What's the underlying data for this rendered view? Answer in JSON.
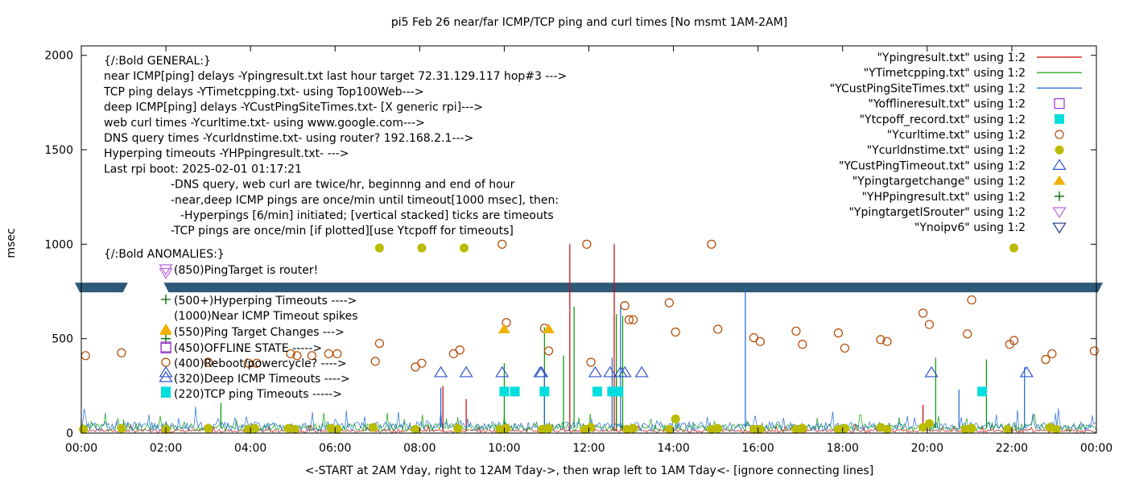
{
  "chart_data": {
    "type": "line",
    "title": "pi5 Feb 26  near/far ICMP/TCP ping and curl times [No msmt 1AM-2AM]",
    "xlabel": "<-START at 2AM Yday, right to 12AM Tday->, then wrap left to 1AM Tday<- [ignore connecting lines]",
    "ylabel": "msec",
    "ylim": [
      0,
      2050
    ],
    "xlim": [
      0,
      24
    ],
    "x_ticks": [
      "00:00",
      "02:00",
      "04:00",
      "06:00",
      "08:00",
      "10:00",
      "12:00",
      "14:00",
      "16:00",
      "18:00",
      "20:00",
      "22:00",
      "00:00"
    ],
    "y_ticks": [
      "0",
      "500",
      "1000",
      "1500",
      "2000"
    ],
    "legend_position": "top-right",
    "legend": [
      {
        "label": "\"Ypingresult.txt\" using 1:2",
        "marker": "line",
        "color": "#cc0000"
      },
      {
        "label": "\"YTimetcpping.txt\" using 1:2",
        "marker": "line",
        "color": "#009900"
      },
      {
        "label": "\"YCustPingSiteTimes.txt\" using 1:2",
        "marker": "line",
        "color": "#1a66cc"
      },
      {
        "label": "\"Yofflineresult.txt\" using 1:2",
        "marker": "open-square",
        "color": "#9933cc"
      },
      {
        "label": "\"Ytcpoff_record.txt\" using 1:2",
        "marker": "filled-square",
        "color": "#00dddd"
      },
      {
        "label": "\"Ycurltime.txt\" using 1:2",
        "marker": "open-circle",
        "color": "#b34700"
      },
      {
        "label": "\"Ycurldnstime.txt\" using 1:2",
        "marker": "filled-circle",
        "color": "#bbbb00"
      },
      {
        "label": "\"YCustPingTimeout.txt\" using 1:2",
        "marker": "open-triangle",
        "color": "#3355cc"
      },
      {
        "label": "\"Ypingtargetchange\" using 1:2",
        "marker": "filled-triangle",
        "color": "#f0b000"
      },
      {
        "label": "\"YHPpingresult.txt\" using 1:2",
        "marker": "plus",
        "color": "#006600"
      },
      {
        "label": "\"YpingtargetISrouter\" using 1:2",
        "marker": "open-down-triangle",
        "color": "#bb66dd"
      },
      {
        "label": "\"Ynoipv6\" using 1:2",
        "marker": "open-down-triangle",
        "color": "#1a3a88"
      }
    ],
    "annotations_general": [
      "{/:Bold GENERAL:}",
      "near ICMP[ping] delays -Ypingresult.txt last hour target 72.31.129.117 hop#3 --->",
      "TCP ping delays -YTimetcpping.txt- using Top100Web--->",
      "deep ICMP[ping] delays -YCustPingSiteTimes.txt- [X generic rpi]--->",
      "web curl times -Ycurltime.txt- using www.google.com--->",
      "DNS query times -Ycurldnstime.txt- using router? 192.168.2.1--->",
      "Hyperping timeouts -YHPpingresult.txt- --->",
      "Last rpi boot: 2025-02-01 01:17:21",
      "-DNS query, web curl are twice/hr, beginnng and end of hour",
      "-near,deep ICMP pings are once/min until timeout[1000 msec], then:",
      "-Hyperpings [6/min] initiated; [vertical stacked] ticks are timeouts",
      "-TCP pings are once/min [if plotted][use Ytcpoff for timeouts]"
    ],
    "annotations_anomalies": [
      "{/:Bold ANOMALIES:}",
      "(850)PingTarget is router!",
      "(500+)Hyperping Timeouts ---->",
      "(1000)Near ICMP Timeout spikes",
      "(550)Ping Target Changes --->",
      "(450)OFFLINE STATE ----->",
      "(400)Reboot/powercycle? ---->",
      "(320)Deep ICMP Timeouts ---->",
      "(220)TCP ping Timeouts ----->"
    ],
    "noipv6_band_y": 775,
    "noipv6_gap_x": [
      1.1,
      1.95
    ],
    "series": [
      {
        "name": "\"Ycurltime.txt\" using 1:2",
        "marker": "open-circle",
        "x": [
          0.1,
          0.95,
          3.0,
          3.95,
          4.15,
          4.95,
          5.1,
          5.45,
          5.85,
          6.05,
          6.95,
          7.05,
          7.9,
          8.05,
          8.8,
          8.95,
          9.95,
          10.05,
          10.95,
          11.05,
          11.95,
          12.05,
          12.85,
          12.95,
          13.05,
          13.9,
          14.05,
          14.9,
          15.05,
          15.9,
          16.05,
          16.9,
          17.05,
          17.9,
          18.05,
          18.9,
          19.05,
          19.9,
          20.05,
          20.95,
          21.05,
          21.95,
          22.05,
          22.8,
          22.95,
          23.95
        ],
        "y": [
          410,
          425,
          375,
          370,
          370,
          420,
          410,
          410,
          420,
          420,
          380,
          475,
          350,
          370,
          420,
          440,
          1000,
          585,
          555,
          435,
          1000,
          375,
          675,
          600,
          600,
          690,
          535,
          1000,
          550,
          505,
          485,
          540,
          470,
          530,
          450,
          495,
          485,
          635,
          575,
          525,
          705,
          470,
          490,
          390,
          420,
          435
        ]
      },
      {
        "name": "\"Ycurldnstime.txt\" using 1:2",
        "marker": "filled-circle",
        "x": [
          0.05,
          0.95,
          2.0,
          3.0,
          3.95,
          4.1,
          4.9,
          5.05,
          5.9,
          6.05,
          6.9,
          7.05,
          7.9,
          8.05,
          8.9,
          9.05,
          9.9,
          10.05,
          10.9,
          11.05,
          11.9,
          12.05,
          12.9,
          13.05,
          13.9,
          14.05,
          14.9,
          15.05,
          15.9,
          16.05,
          16.9,
          17.05,
          17.9,
          18.05,
          18.9,
          19.05,
          19.9,
          20.05,
          20.9,
          21.05,
          21.9,
          22.05,
          22.9,
          23.05
        ],
        "y": [
          20,
          25,
          20,
          25,
          20,
          25,
          25,
          20,
          25,
          20,
          30,
          980,
          20,
          980,
          25,
          980,
          20,
          25,
          20,
          25,
          20,
          30,
          20,
          25,
          20,
          75,
          20,
          25,
          20,
          20,
          20,
          25,
          20,
          25,
          30,
          20,
          30,
          50,
          20,
          25,
          20,
          980,
          30,
          20
        ]
      },
      {
        "name": "\"YCustPingTimeout.txt\" using 1:2",
        "marker": "open-triangle",
        "x": [
          2.0,
          8.5,
          9.1,
          9.95,
          10.85,
          10.88,
          12.15,
          12.5,
          12.75,
          12.85,
          13.25,
          20.1,
          22.35
        ],
        "y": [
          320,
          320,
          320,
          320,
          320,
          320,
          320,
          320,
          320,
          320,
          320,
          320,
          320
        ]
      },
      {
        "name": "\"Ytcpoff_record.txt\" using 1:2",
        "marker": "filled-square",
        "x": [
          2.0,
          10.0,
          10.25,
          10.95,
          12.2,
          12.55,
          12.7,
          21.3
        ],
        "y": [
          220,
          220,
          220,
          220,
          220,
          220,
          220,
          220
        ]
      },
      {
        "name": "\"Ypingtargetchange\" using 1:2",
        "marker": "filled-triangle",
        "x": [
          2.0,
          10.0,
          11.05
        ],
        "y": [
          550,
          550,
          550
        ]
      },
      {
        "name": "\"Yofflineresult.txt\" using 1:2",
        "marker": "open-square",
        "x": [
          2.0
        ],
        "y": [
          450
        ]
      },
      {
        "name": "\"YpingtargetISrouter\" using 1:2",
        "marker": "open-down-triangle",
        "x": [
          2.0
        ],
        "y": [
          850
        ]
      },
      {
        "name": "\"YHPpingresult.txt\" using 1:2",
        "marker": "plus",
        "x": [
          2.0
        ],
        "y": [
          500
        ]
      },
      {
        "name": "\"Ypingresult.txt\" using 1:2",
        "marker": "line",
        "spikes_x": [
          8.55,
          9.1,
          11.55,
          12.6,
          12.65,
          19.9
        ],
        "spikes_y": [
          250,
          180,
          1000,
          1000,
          280,
          150
        ],
        "baseline": 10
      },
      {
        "name": "\"YTimetcpping.txt\" using 1:2",
        "marker": "line",
        "spikes_x": [
          0.0,
          1.0,
          2.0,
          3.3,
          10.0,
          10.95,
          11.4,
          11.65,
          12.65,
          12.8,
          20.2,
          21.4
        ],
        "spikes_y": [
          75,
          70,
          60,
          160,
          370,
          560,
          410,
          670,
          630,
          620,
          400,
          390
        ],
        "baseline": 25
      },
      {
        "name": "\"YCustPingSiteTimes.txt\" using 1:2",
        "marker": "line",
        "spikes_x": [
          8.5,
          10.95,
          12.55,
          12.75,
          15.7,
          20.75,
          22.3
        ],
        "spikes_y": [
          240,
          320,
          400,
          680,
          760,
          230,
          350
        ],
        "baseline": 30
      }
    ]
  }
}
